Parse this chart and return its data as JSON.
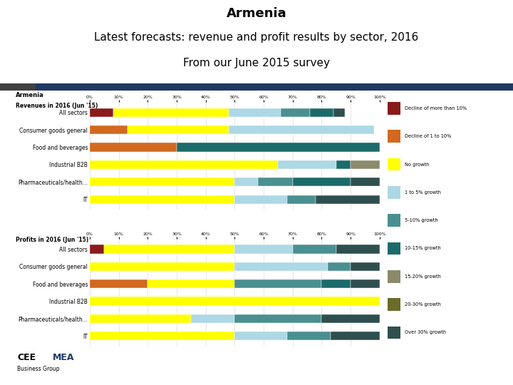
{
  "title1": "Armenia",
  "title2": "Latest forecasts: revenue and profit results by sector, 2016",
  "title3": "From our June 2015 survey",
  "categories": [
    "All sectors",
    "Consumer goods general",
    "Food and beverages",
    "Industrial B2B",
    "Pharmaceuticals/health...",
    "IT"
  ],
  "legend_labels": [
    "Decline of more than 10%",
    "Decline of 1 to 10%",
    "No growth",
    "1 to 5% growth",
    "5-10% growth",
    "10-15% growth",
    "15-20% growth",
    "20-30% growth",
    "Over 30% growth"
  ],
  "colors": [
    "#8B1A1A",
    "#D2691E",
    "#FFFF00",
    "#ADD8E6",
    "#4A9090",
    "#1C6B6B",
    "#8B8B6B",
    "#6B6B2A",
    "#2F4F4F"
  ],
  "revenue_data": [
    [
      8,
      0,
      40,
      18,
      10,
      8,
      0,
      0,
      4
    ],
    [
      0,
      13,
      35,
      50,
      0,
      0,
      0,
      0,
      0
    ],
    [
      0,
      30,
      0,
      0,
      0,
      70,
      0,
      0,
      0
    ],
    [
      0,
      0,
      65,
      20,
      0,
      5,
      10,
      0,
      0
    ],
    [
      0,
      0,
      50,
      8,
      12,
      20,
      0,
      0,
      10
    ],
    [
      0,
      0,
      50,
      18,
      10,
      0,
      0,
      0,
      22
    ]
  ],
  "profit_data": [
    [
      5,
      0,
      45,
      20,
      15,
      0,
      0,
      0,
      15
    ],
    [
      0,
      0,
      50,
      32,
      8,
      0,
      0,
      0,
      10
    ],
    [
      0,
      20,
      30,
      0,
      30,
      10,
      0,
      0,
      10
    ],
    [
      0,
      0,
      100,
      0,
      0,
      0,
      0,
      0,
      0
    ],
    [
      0,
      0,
      35,
      15,
      30,
      0,
      0,
      0,
      20
    ],
    [
      0,
      0,
      50,
      18,
      15,
      0,
      0,
      0,
      17
    ]
  ],
  "bg_color": "#FFFFFF",
  "slide_bg": "#FFFFFF",
  "chart_box_bg": "#F0F0F0",
  "chart_inner_bg": "#FFFFFF",
  "header_bar_dark": "#404040",
  "header_bar_blue": "#1F3864",
  "title_fontsize": 13,
  "subtitle_fontsize": 11
}
